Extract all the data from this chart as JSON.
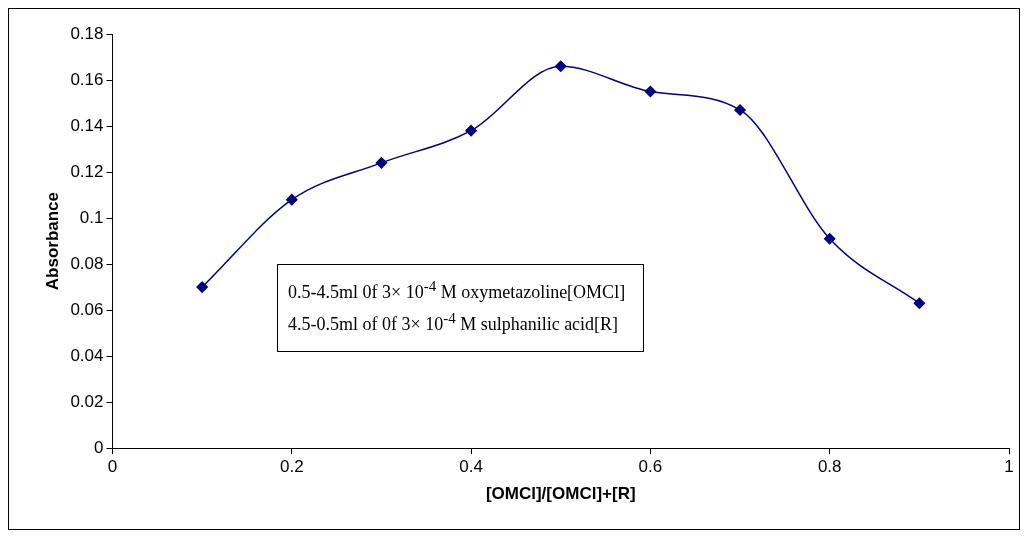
{
  "chart_data": {
    "type": "line",
    "xlabel": "[OMCl]/[OMCl]+[R]",
    "ylabel": "Absorbance",
    "x": [
      0.1,
      0.2,
      0.3,
      0.4,
      0.5,
      0.6,
      0.7,
      0.8,
      0.9
    ],
    "series": [
      {
        "color": "#000080",
        "values": [
          0.07,
          0.108,
          0.124,
          0.138,
          0.166,
          0.155,
          0.147,
          0.091,
          0.063
        ]
      }
    ],
    "xlim": [
      0,
      1
    ],
    "xticks": [
      0,
      0.2,
      0.4,
      0.6,
      0.8,
      1
    ],
    "ylim": [
      0,
      0.18
    ],
    "yticks": [
      0,
      0.02,
      0.04,
      0.06,
      0.08,
      0.1,
      0.12,
      0.14,
      0.16,
      0.18
    ],
    "marker": "diamond",
    "line_style": "solid",
    "grid": false,
    "legend": false,
    "annotations": [
      "0.5-4.5ml 0f 3× 10$^{-4}$ M  oxymetazoline[OMCl]",
      "4.5-0.5ml of 0f 3× 10$^{-4}$ M  sulphanilic acid[R]"
    ]
  }
}
